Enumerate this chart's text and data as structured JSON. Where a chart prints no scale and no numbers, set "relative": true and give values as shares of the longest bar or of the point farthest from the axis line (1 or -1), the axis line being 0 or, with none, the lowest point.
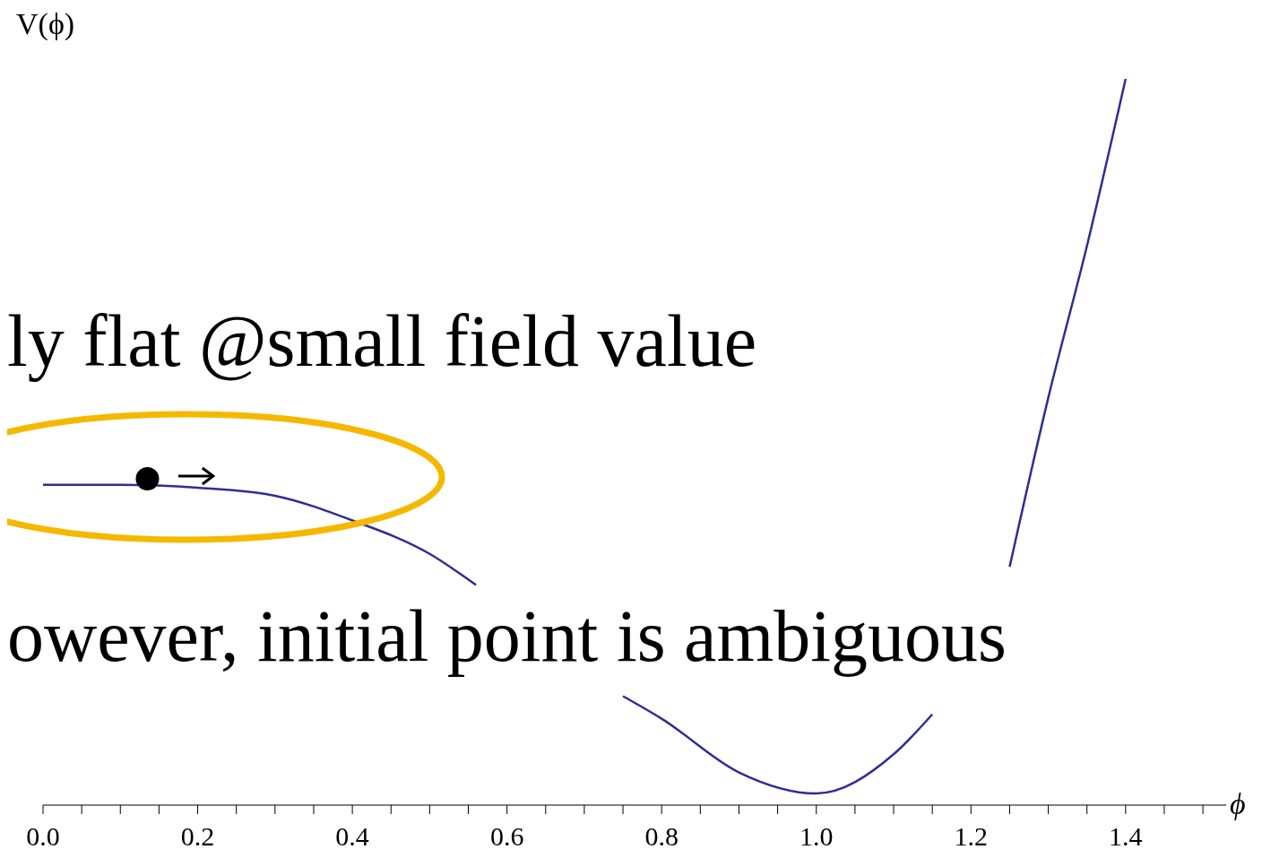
{
  "chart_data": {
    "type": "line",
    "relative": true,
    "ylabel": "V(ϕ)",
    "xlabel": "ϕ",
    "annotations": [
      "ly flat @small field value",
      "owever, initial point is ambiguous"
    ],
    "x": [
      0,
      0.1,
      0.2,
      0.3,
      0.4,
      0.5,
      0.56,
      0.65,
      0.75,
      0.8,
      0.9,
      1.0,
      1.1,
      1.15,
      1.2,
      1.25,
      1.3,
      1.35,
      1.4
    ],
    "series": [
      {
        "color": "#2e2e92",
        "values": [
          0.441,
          0.441,
          0.437,
          0.426,
          0.392,
          0.346,
          0.303,
          null,
          0.15,
          0.119,
          0.045,
          0.016,
          0.07,
          0.125,
          null,
          0.328,
          0.561,
          0.77,
          1
        ]
      }
    ],
    "xlim": [
      0,
      1.53
    ],
    "xticks": [
      {
        "value": 0,
        "label": "0.0"
      },
      {
        "value": 0.05,
        "label": null
      },
      {
        "value": 0.1,
        "label": null
      },
      {
        "value": 0.15,
        "label": null
      },
      {
        "value": 0.2,
        "label": "0.2"
      },
      {
        "value": 0.25,
        "label": null
      },
      {
        "value": 0.3,
        "label": null
      },
      {
        "value": 0.35,
        "label": null
      },
      {
        "value": 0.4,
        "label": "0.4"
      },
      {
        "value": 0.45,
        "label": null
      },
      {
        "value": 0.5,
        "label": null
      },
      {
        "value": 0.55,
        "label": null
      },
      {
        "value": 0.6,
        "label": "0.6"
      },
      {
        "value": 0.65,
        "label": null
      },
      {
        "value": 0.7,
        "label": null
      },
      {
        "value": 0.75,
        "label": null
      },
      {
        "value": 0.8,
        "label": "0.8"
      },
      {
        "value": 0.85,
        "label": null
      },
      {
        "value": 0.9,
        "label": null
      },
      {
        "value": 0.95,
        "label": null
      },
      {
        "value": 1,
        "label": "1.0"
      },
      {
        "value": 1.05,
        "label": null
      },
      {
        "value": 1.1,
        "label": null
      },
      {
        "value": 1.15,
        "label": null
      },
      {
        "value": 1.2,
        "label": "1.2"
      },
      {
        "value": 1.25,
        "label": null
      },
      {
        "value": 1.3,
        "label": null
      },
      {
        "value": 1.35,
        "label": null
      },
      {
        "value": 1.4,
        "label": "1.4"
      },
      {
        "value": 1.45,
        "label": null
      },
      {
        "value": 1.5,
        "label": null
      }
    ],
    "grid": false,
    "legend": false,
    "marker": "none",
    "line_style": "solid"
  }
}
